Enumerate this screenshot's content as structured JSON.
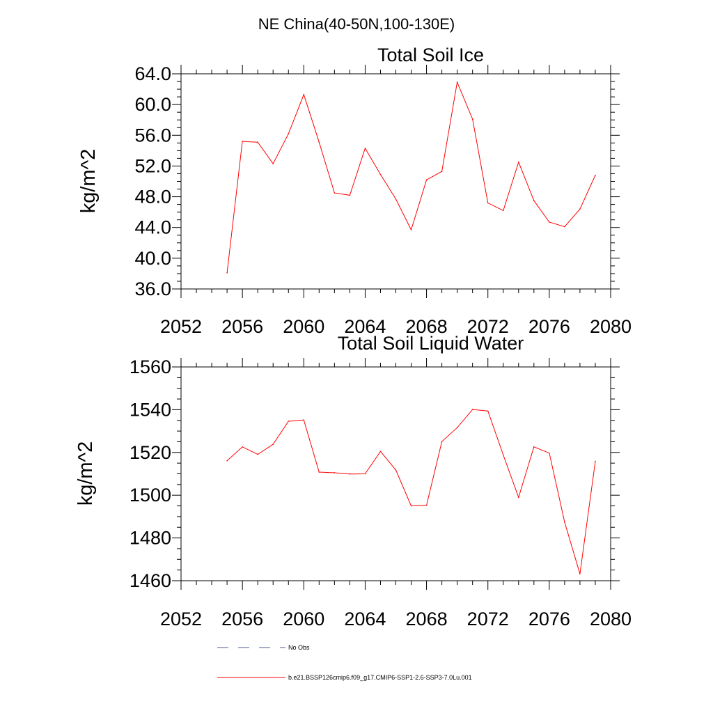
{
  "figure": {
    "title": "NE China(40-50N,100-130E)"
  },
  "chart_data": [
    {
      "type": "line",
      "title": "Total Soil Ice",
      "xlabel": "",
      "ylabel": "kg/m^2",
      "xlim": [
        2052,
        2080
      ],
      "ylim": [
        36,
        64
      ],
      "x_ticks": [
        "2052",
        "2056",
        "2060",
        "2064",
        "2068",
        "2072",
        "2076",
        "2080"
      ],
      "y_ticks": [
        "36.0",
        "40.0",
        "44.0",
        "48.0",
        "52.0",
        "56.0",
        "60.0",
        "64.0"
      ],
      "grid": false,
      "series": [
        {
          "name": "b.e21.BSSP126cmip6.f09_g17.CMIP6-SSP1-2.6-SSP3-7.0Lu.001",
          "color": "#ff0000",
          "x": [
            2055,
            2056,
            2057,
            2058,
            2059,
            2060,
            2061,
            2062,
            2063,
            2064,
            2065,
            2066,
            2067,
            2068,
            2069,
            2070,
            2071,
            2072,
            2073,
            2074,
            2075,
            2076,
            2077,
            2078,
            2079
          ],
          "values": [
            38.1,
            55.2,
            55.1,
            52.3,
            56.2,
            61.3,
            55.1,
            48.5,
            48.2,
            54.3,
            50.9,
            47.7,
            43.7,
            50.2,
            51.3,
            62.9,
            58.1,
            47.2,
            46.2,
            52.5,
            47.5,
            44.7,
            44.1,
            46.4,
            50.8
          ]
        }
      ]
    },
    {
      "type": "line",
      "title": "Total Soil Liquid Water",
      "xlabel": "",
      "ylabel": "kg/m^2",
      "xlim": [
        2052,
        2080
      ],
      "ylim": [
        1460,
        1560
      ],
      "x_ticks": [
        "2052",
        "2056",
        "2060",
        "2064",
        "2068",
        "2072",
        "2076",
        "2080"
      ],
      "y_ticks": [
        "1460",
        "1480",
        "1500",
        "1520",
        "1540",
        "1560"
      ],
      "grid": false,
      "series": [
        {
          "name": "b.e21.BSSP126cmip6.f09_g17.CMIP6-SSP1-2.6-SSP3-7.0Lu.001",
          "color": "#ff0000",
          "x": [
            2055,
            2056,
            2057,
            2058,
            2059,
            2060,
            2061,
            2062,
            2063,
            2064,
            2065,
            2066,
            2067,
            2068,
            2069,
            2070,
            2071,
            2072,
            2073,
            2074,
            2075,
            2076,
            2077,
            2078,
            2079
          ],
          "values": [
            1516.1,
            1522.6,
            1519.1,
            1523.8,
            1534.6,
            1535.2,
            1510.8,
            1510.5,
            1509.9,
            1510.0,
            1520.5,
            1511.8,
            1495.0,
            1495.3,
            1525.1,
            1531.6,
            1540.1,
            1539.4,
            1518.8,
            1499.0,
            1522.6,
            1519.7,
            1487.4,
            1463.2,
            1515.9
          ]
        }
      ]
    }
  ],
  "legend": {
    "placement": "bottom-center",
    "items": [
      {
        "label": "No Obs",
        "color": "#4b5a96",
        "style": "dashed"
      },
      {
        "label": "b.e21.BSSP126cmip6.f09_g17.CMIP6-SSP1-2.6-SSP3-7.0Lu.001",
        "color": "#ff0000",
        "style": "solid"
      }
    ]
  }
}
